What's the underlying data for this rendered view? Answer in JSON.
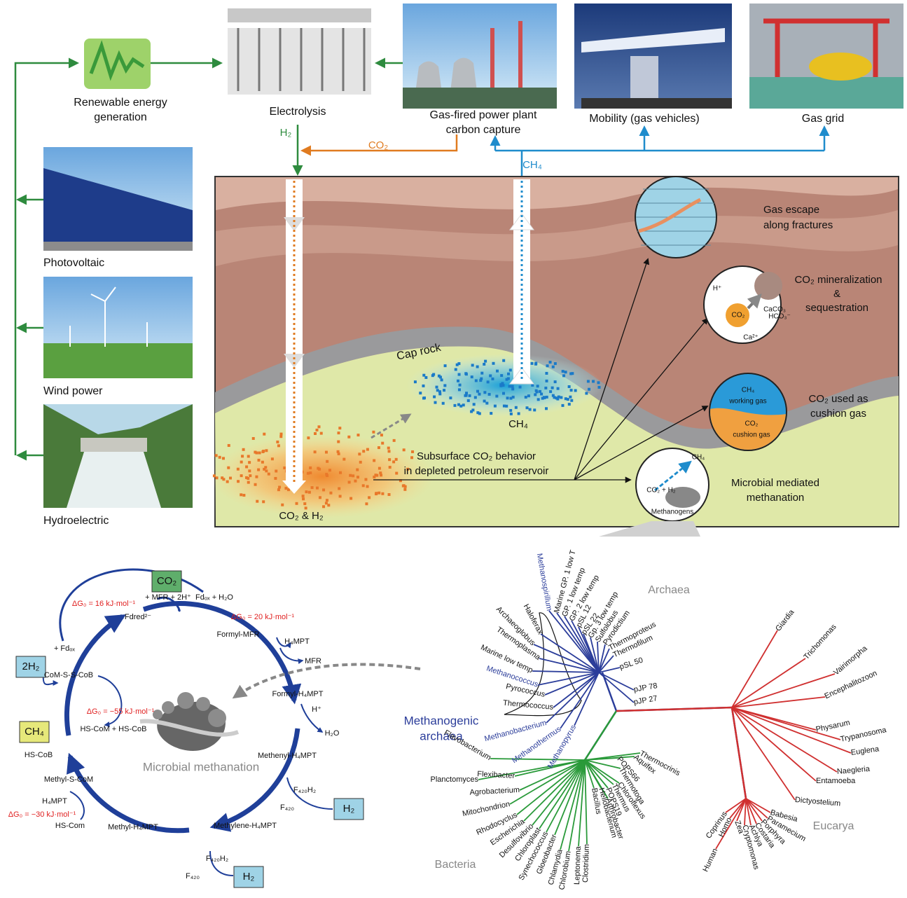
{
  "top": [
    "Renewable energy",
    "generation",
    "Electrolysis",
    "Gas-fired power plant",
    "carbon capture",
    "Mobility (gas vehicles)",
    "Gas grid",
    "H₂",
    "CO₂",
    "CH₄"
  ],
  "sources": [
    "Photovoltaic",
    "Wind power",
    "Hydroelectric"
  ],
  "reservoir": [
    "Cap rock",
    "CH₄",
    "CO₂ & H₂",
    "Subsurface CO₂ behavior",
    "in depleted petroleum reservoir",
    "Gas escape",
    "along fractures",
    "CO₂ mineralization",
    "&",
    "sequestration",
    "CO₂ used as",
    "cushion gas",
    "Microbial mediated",
    "methanation"
  ],
  "insets": [
    "H⁺",
    "CaCO₃",
    "CO₂",
    "HCO₃⁻",
    "Ca²⁺",
    "CH₄",
    "working gas",
    "CO₂",
    "cushion gas",
    "CH₄",
    "CO₂ + H₂",
    "Methanogens"
  ],
  "cycle": [
    "CO₂",
    "+ MFR + 2H⁺",
    "Fdₒₓ + H₂O",
    "ΔG₀ = 16 kJ·mol⁻¹",
    "ΔG₀ = 20 kJ·mol⁻¹",
    "Fdred²⁻",
    "Formyl-MFR",
    "+ Fdₒₓ",
    "2H₂",
    "H₄MPT",
    "MFR",
    "CoM-S-S-CoB",
    "Formyl-H₄MPT",
    "ΔG₀ = −55 kJ·mol⁻¹",
    "H⁺",
    "H₂O",
    "CH₄",
    "HS-CoM + HS-CoB",
    "HS-CoB",
    "Microbial methanation",
    "Methenyl-H₄MPT",
    "F₄₂₀H₂",
    "F₄₂₀",
    "H₂",
    "Methyl-S-CoM",
    "H₄MPT",
    "ΔG₀ = −30 kJ·mol⁻¹",
    "HS-Com",
    "Methyl-H₄MPT",
    "Methylene-H₄MPT",
    "F₄₂₀H₂",
    "F₄₂₀",
    "H₂"
  ],
  "tree": {
    "groups": [
      "Archaea",
      "Bacteria",
      "Eucarya",
      "Methanogenic",
      "archaea"
    ],
    "archaea": [
      "Haloferax",
      "Methanospirillum",
      "Marine GP. 1 low T",
      "GP. 1 low temp",
      "GP. 2 low temp",
      "pSL 12",
      "pSL 22",
      "Gp. 3 low temp",
      "Sulfolobus",
      "Pyrodictium",
      "Thermoproteus",
      "Thermofilum",
      "pSL 50",
      "pJP 78",
      "pJP 27",
      "Archaeoglobus",
      "Thermoplasma",
      "Marine low temp",
      "Methanococcus",
      "Pyrococcus",
      "Thermococcus",
      "Methanobacterium",
      "Methanothermus",
      "Methanopyrus"
    ],
    "bacteria": [
      "Flavobacterium",
      "Flexibacter",
      "Planctomyces",
      "Agrobacterium",
      "Mitochondrion",
      "Rhodocyclus",
      "Escherichia",
      "Desulfovibrio",
      "Chloroplast",
      "Synechococcus",
      "Gloeobacter",
      "Chlamydia",
      "Chlorobium",
      "Leptonema",
      "Clostridium",
      "Bacillus",
      "Heliobacterium",
      "Arthrobacter",
      "POPS19",
      "Thermus",
      "Chloroflexus",
      "Thermotoga",
      "POPS66",
      "Aquifex",
      "Thermocrinis"
    ],
    "eucarya": [
      "Giardia",
      "Trichomonas",
      "Vairimorpha",
      "Encephalitozoon",
      "Physarum",
      "Trypanosoma",
      "Euglena",
      "Naegleria",
      "Entamoeba",
      "Dictyostelium",
      "Babesia",
      "Paramecium",
      "Porphyra",
      "Costaria",
      "Achlya",
      "Cryptomonas",
      "Zea",
      "Homo",
      "Coprinus",
      "Human"
    ]
  }
}
